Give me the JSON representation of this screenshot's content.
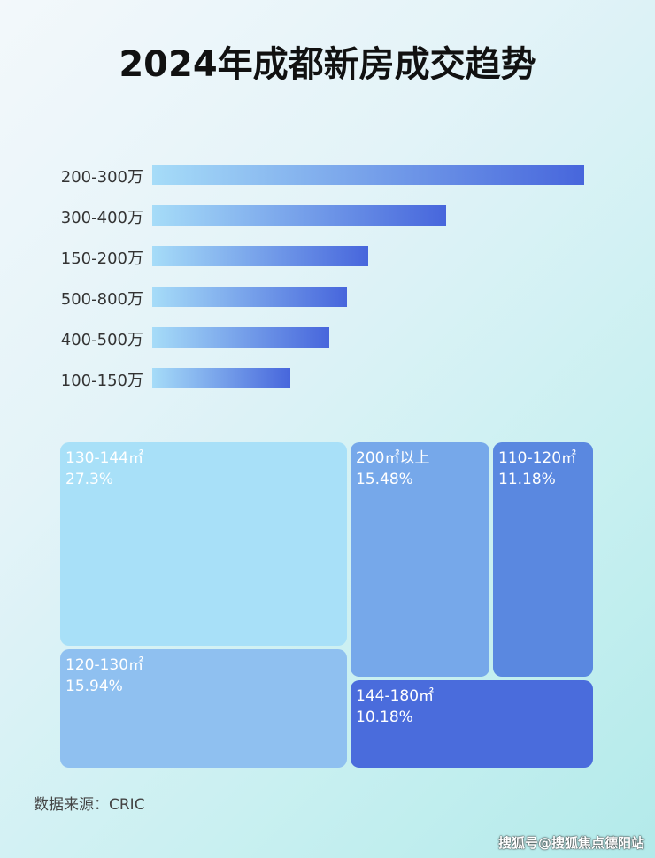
{
  "chart_data": [
    {
      "type": "bar",
      "orientation": "horizontal",
      "title": "2024年成都新房成交趋势",
      "categories": [
        "200-300万",
        "300-400万",
        "150-200万",
        "500-800万",
        "400-500万",
        "100-150万"
      ],
      "values": [
        100,
        68,
        50,
        45,
        41,
        32
      ],
      "colors": {
        "start": "#a6dcf8",
        "end": "#4766dc"
      }
    },
    {
      "type": "treemap",
      "cells": [
        {
          "label": "130-144㎡",
          "value": "27.3%",
          "color": "#a8e0f8"
        },
        {
          "label": "120-130㎡",
          "value": "15.94%",
          "color": "#8fc0f0"
        },
        {
          "label": "200㎡以上",
          "value": "15.48%",
          "color": "#76a8ea"
        },
        {
          "label": "110-120㎡",
          "value": "11.18%",
          "color": "#5a88e0"
        },
        {
          "label": "144-180㎡",
          "value": "10.18%",
          "color": "#4a6cdc"
        }
      ]
    }
  ],
  "source": "数据来源：CRIC",
  "watermark": "搜狐号@搜狐焦点德阳站"
}
